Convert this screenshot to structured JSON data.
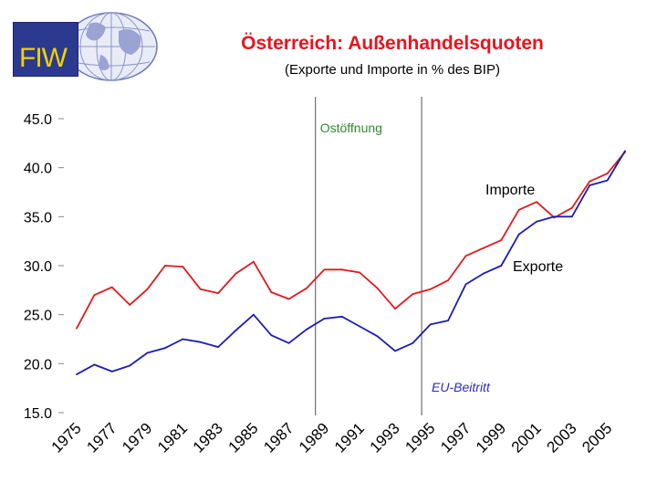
{
  "logo": {
    "text": "FIW"
  },
  "header": {
    "title": "Österreich: Außenhandelsquoten",
    "subtitle": "(Exporte und Importe in % des BIP)"
  },
  "chart_data": {
    "type": "line",
    "title": "Österreich: Außenhandelsquoten",
    "subtitle": "(Exporte und Importe in % des BIP)",
    "xlabel": "",
    "ylabel": "",
    "ylim": [
      15.0,
      45.0
    ],
    "y_ticks": [
      "15.0",
      "20.0",
      "25.0",
      "30.0",
      "35.0",
      "40.0",
      "45.0"
    ],
    "x_tick_labels": [
      "1975",
      "1977",
      "1979",
      "1981",
      "1983",
      "1985",
      "1987",
      "1989",
      "1991",
      "1993",
      "1995",
      "1997",
      "1999",
      "2001",
      "2003",
      "2005"
    ],
    "x": [
      1975,
      1976,
      1977,
      1978,
      1979,
      1980,
      1981,
      1982,
      1983,
      1984,
      1985,
      1986,
      1987,
      1988,
      1989,
      1990,
      1991,
      1992,
      1993,
      1994,
      1995,
      1996,
      1997,
      1998,
      1999,
      2000,
      2001,
      2002,
      2003,
      2004,
      2005,
      2006
    ],
    "series": [
      {
        "name": "Importe",
        "color": "#e0191e",
        "values": [
          23.6,
          27.0,
          27.8,
          26.0,
          27.6,
          30.0,
          29.9,
          27.6,
          27.2,
          29.2,
          30.4,
          27.3,
          26.6,
          27.7,
          29.6,
          29.6,
          29.3,
          27.7,
          25.6,
          27.1,
          27.6,
          28.5,
          31.0,
          31.8,
          32.6,
          35.7,
          36.5,
          34.9,
          35.9,
          38.6,
          39.4,
          41.6
        ]
      },
      {
        "name": "Exporte",
        "color": "#1c1cb4",
        "values": [
          18.9,
          19.9,
          19.2,
          19.8,
          21.1,
          21.6,
          22.5,
          22.2,
          21.7,
          23.4,
          25.0,
          22.9,
          22.1,
          23.5,
          24.6,
          24.8,
          23.8,
          22.8,
          21.3,
          22.1,
          24.0,
          24.4,
          28.1,
          29.2,
          30.0,
          33.2,
          34.5,
          35.0,
          35.0,
          38.2,
          38.7,
          41.7
        ]
      }
    ],
    "vlines": [
      {
        "x": 1988.5,
        "label": "Ostöffnung",
        "label_color": "#2e8b2e"
      },
      {
        "x": 1994.5,
        "label": "EU-Beitritt",
        "label_color": "#2b2bbf"
      }
    ],
    "legend": "inline labels next to lines"
  }
}
